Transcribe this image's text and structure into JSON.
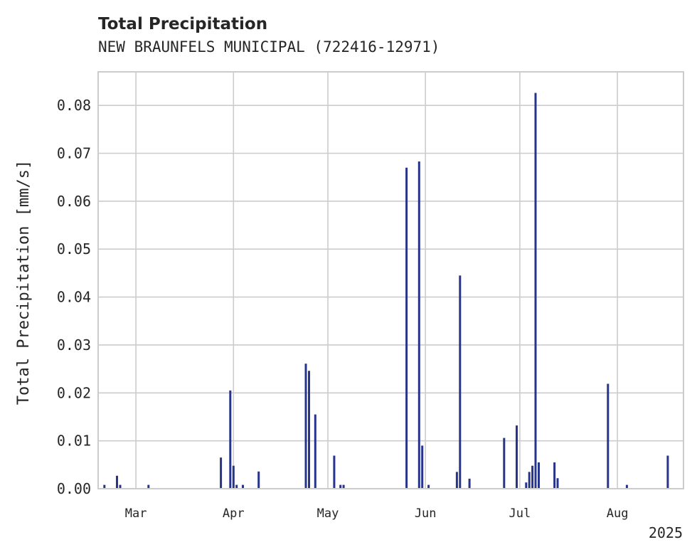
{
  "chart_data": {
    "type": "bar",
    "title": "Total Precipitation",
    "subtitle": "NEW BRAUNFELS MUNICIPAL (722416-12971)",
    "ylabel": "Total Precipitation [mm/s]",
    "xlabel": "",
    "year_label": "2025",
    "ylim": [
      0,
      0.087
    ],
    "xlim": [
      "2025-02-17",
      "2025-08-22"
    ],
    "yticks": [
      0,
      0.01,
      0.02,
      0.03,
      0.04,
      0.05,
      0.06,
      0.07,
      0.08
    ],
    "ytick_labels": [
      "0.00",
      "0.01",
      "0.02",
      "0.03",
      "0.04",
      "0.05",
      "0.06",
      "0.07",
      "0.08"
    ],
    "xticks": [
      "2025-03-01",
      "2025-04-01",
      "2025-05-01",
      "2025-06-01",
      "2025-07-01",
      "2025-08-01"
    ],
    "xtick_labels": [
      "Mar",
      "Apr",
      "May",
      "Jun",
      "Jul",
      "Aug"
    ],
    "grid": true,
    "color": "#27348b",
    "x": [
      "2025-02-19",
      "2025-02-23",
      "2025-02-24",
      "2025-03-05",
      "2025-03-28",
      "2025-03-31",
      "2025-04-01",
      "2025-04-02",
      "2025-04-04",
      "2025-04-09",
      "2025-04-24",
      "2025-04-25",
      "2025-04-27",
      "2025-05-03",
      "2025-05-05",
      "2025-05-06",
      "2025-05-26",
      "2025-05-30",
      "2025-05-31",
      "2025-06-02",
      "2025-06-11",
      "2025-06-12",
      "2025-06-15",
      "2025-06-26",
      "2025-06-30",
      "2025-07-03",
      "2025-07-04",
      "2025-07-05",
      "2025-07-06",
      "2025-07-07",
      "2025-07-12",
      "2025-07-13",
      "2025-07-29",
      "2025-08-04",
      "2025-08-17"
    ],
    "values": [
      0.0008,
      0.0027,
      0.0008,
      0.0008,
      0.0065,
      0.0205,
      0.0048,
      0.0008,
      0.0008,
      0.0036,
      0.0261,
      0.0246,
      0.0155,
      0.0069,
      0.0008,
      0.0008,
      0.067,
      0.0683,
      0.009,
      0.0008,
      0.0035,
      0.0445,
      0.0021,
      0.0106,
      0.0132,
      0.0013,
      0.0035,
      0.0048,
      0.0826,
      0.0055,
      0.0055,
      0.0022,
      0.0219,
      0.0008,
      0.0069
    ]
  }
}
